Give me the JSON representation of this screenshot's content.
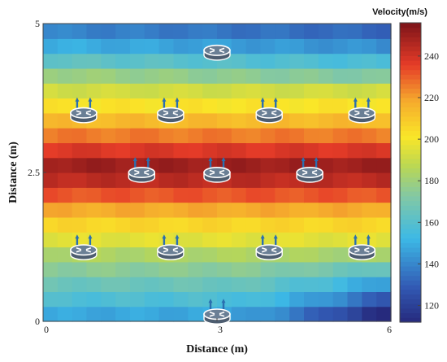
{
  "chart_data": {
    "type": "heatmap",
    "title": "",
    "xlabel": "Distance (m)",
    "ylabel": "Distance (m)",
    "colorbar_label": "Velocity(m/s)",
    "xlim": [
      0,
      6
    ],
    "ylim": [
      0,
      5
    ],
    "x_ticks": [
      "0",
      "3",
      "6"
    ],
    "y_ticks": [
      "0",
      "2.5",
      "5"
    ],
    "colorbar_ticks": [
      "120",
      "140",
      "160",
      "180",
      "200",
      "220",
      "240"
    ],
    "colorbar_range": [
      112,
      256
    ],
    "colormap": "jet",
    "grid": false,
    "band_velocity_profile": [
      {
        "y": 0.125,
        "value": 148
      },
      {
        "y": 0.375,
        "value": 158
      },
      {
        "y": 0.625,
        "value": 166
      },
      {
        "y": 0.875,
        "value": 175
      },
      {
        "y": 1.125,
        "value": 184
      },
      {
        "y": 1.375,
        "value": 196
      },
      {
        "y": 1.625,
        "value": 206
      },
      {
        "y": 1.875,
        "value": 218
      },
      {
        "y": 2.125,
        "value": 232
      },
      {
        "y": 2.375,
        "value": 244
      },
      {
        "y": 2.625,
        "value": 250
      },
      {
        "y": 2.875,
        "value": 238
      },
      {
        "y": 3.125,
        "value": 226
      },
      {
        "y": 3.375,
        "value": 214
      },
      {
        "y": 3.625,
        "value": 202
      },
      {
        "y": 3.875,
        "value": 192
      },
      {
        "y": 4.125,
        "value": 180
      },
      {
        "y": 4.375,
        "value": 164
      },
      {
        "y": 4.625,
        "value": 150
      },
      {
        "y": 4.875,
        "value": 140
      }
    ],
    "routers": [
      {
        "x": 3.0,
        "y": 4.55,
        "antennas": false
      },
      {
        "x": 0.7,
        "y": 3.5,
        "antennas": true
      },
      {
        "x": 2.2,
        "y": 3.5,
        "antennas": true
      },
      {
        "x": 3.9,
        "y": 3.5,
        "antennas": true
      },
      {
        "x": 5.5,
        "y": 3.5,
        "antennas": true
      },
      {
        "x": 1.7,
        "y": 2.5,
        "antennas": true
      },
      {
        "x": 3.0,
        "y": 2.5,
        "antennas": true
      },
      {
        "x": 4.6,
        "y": 2.5,
        "antennas": true
      },
      {
        "x": 0.7,
        "y": 1.2,
        "antennas": true
      },
      {
        "x": 2.2,
        "y": 1.2,
        "antennas": true
      },
      {
        "x": 3.9,
        "y": 1.2,
        "antennas": true
      },
      {
        "x": 5.5,
        "y": 1.2,
        "antennas": true
      },
      {
        "x": 3.0,
        "y": 0.12,
        "antennas": true
      }
    ]
  }
}
